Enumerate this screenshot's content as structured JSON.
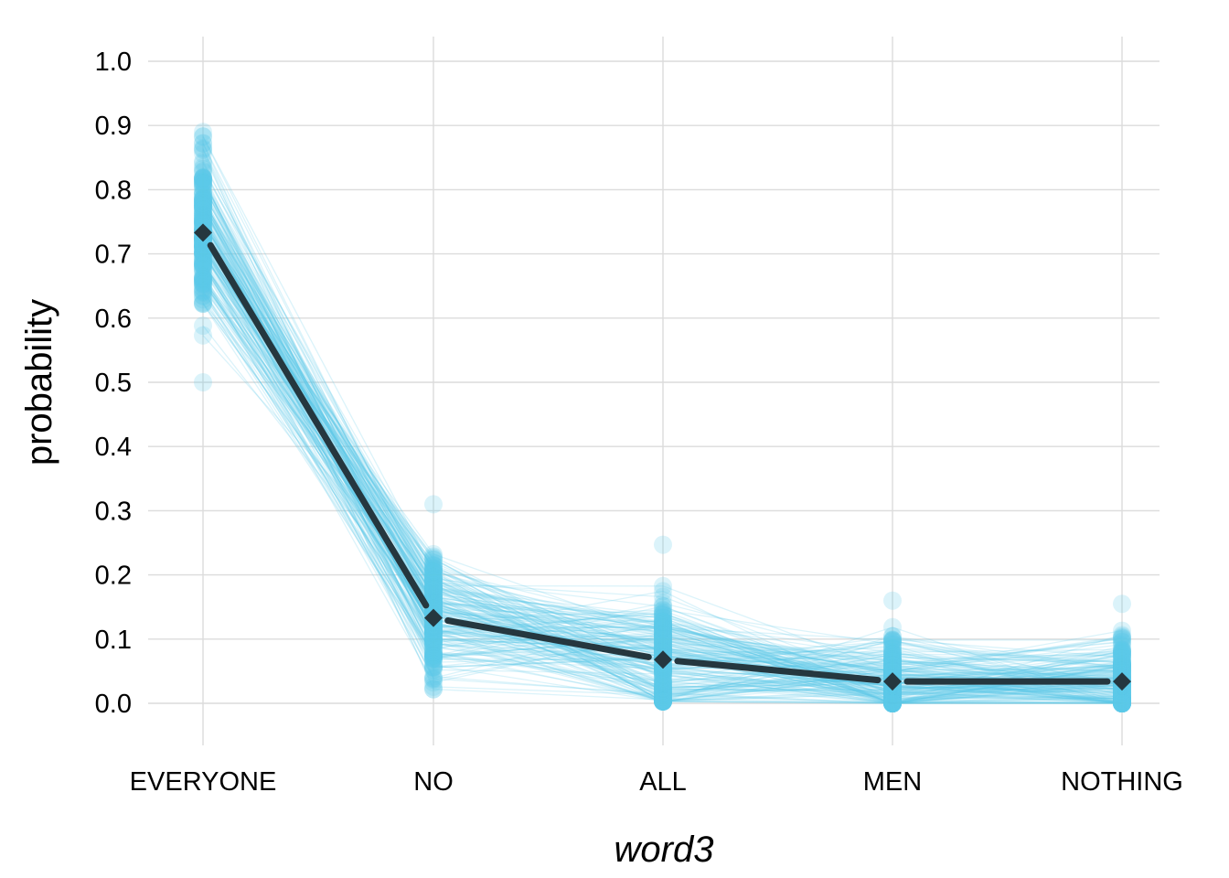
{
  "chart_data": {
    "type": "line",
    "xlabel": "word3",
    "ylabel": "probability",
    "categories": [
      "EVERYONE",
      "NO",
      "ALL",
      "MEN",
      "NOTHING"
    ],
    "ylim": [
      -0.065,
      1.04
    ],
    "yticks": [
      0.0,
      0.1,
      0.2,
      0.3,
      0.4,
      0.5,
      0.6,
      0.7,
      0.8,
      0.9,
      1.0
    ],
    "ytick_labels": [
      "0.0",
      "0.1",
      "0.2",
      "0.3",
      "0.4",
      "0.5",
      "0.6",
      "0.7",
      "0.8",
      "0.9",
      "1.0"
    ],
    "grid": true,
    "legend": "none",
    "series": [
      {
        "role": "mean",
        "values": [
          0.733,
          0.133,
          0.068,
          0.034,
          0.034
        ]
      }
    ],
    "samples": {
      "count": 200,
      "ranges": [
        [
          0.5,
          0.89
        ],
        [
          0.022,
          0.31
        ],
        [
          0.003,
          0.247
        ],
        [
          0.0,
          0.16
        ],
        [
          0.0,
          0.155
        ]
      ]
    },
    "colors": {
      "samples": "#5bc8ea",
      "mean": "#25373f",
      "grid": "#dcdcdc"
    }
  }
}
